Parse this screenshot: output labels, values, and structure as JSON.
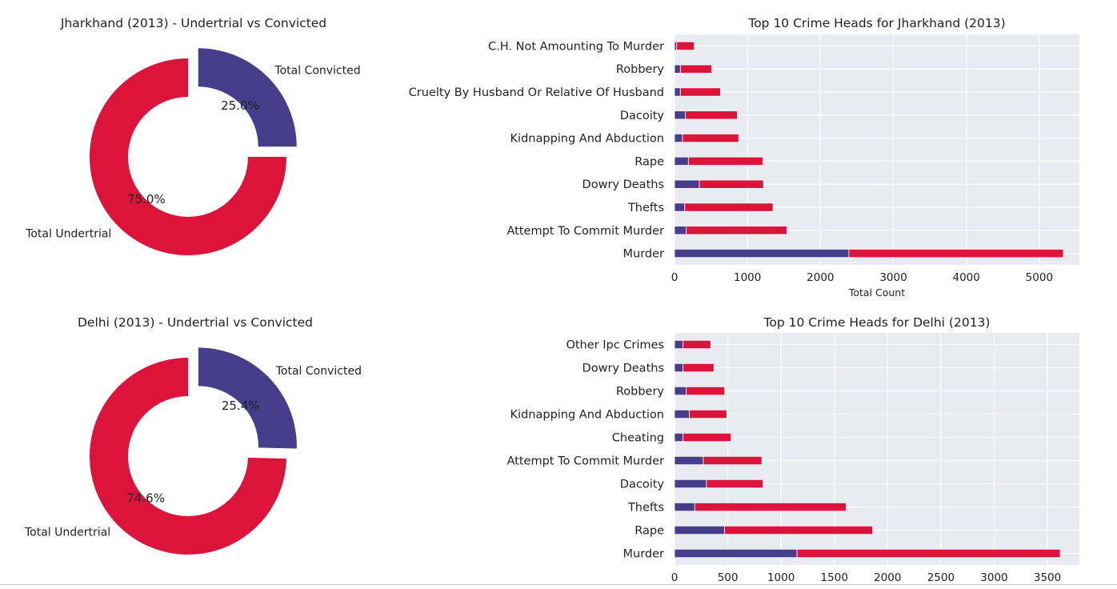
{
  "colors": {
    "undertrial": "#dc143c",
    "convicted": "#483d8b",
    "plot_bg": "#eaeaf2",
    "grid": "#ffffff"
  },
  "chart_data": [
    {
      "type": "pie",
      "title": "Jharkhand (2013) - Undertrial vs Convicted",
      "donut": true,
      "labels": [
        "Total Undertrial",
        "Total Convicted"
      ],
      "values": [
        75.0,
        25.0
      ],
      "autopct": [
        "75.0%",
        "25.0%"
      ],
      "explode_slice": "Total Convicted"
    },
    {
      "type": "bar",
      "orientation": "horizontal",
      "stacked": true,
      "title": "Top 10 Crime Heads for Jharkhand (2013)",
      "xlabel": "Total Count",
      "ylabel": "",
      "categories": [
        "Murder",
        "Attempt To Commit Murder",
        "Thefts",
        "Dowry Deaths",
        "Rape",
        "Kidnapping And Abduction",
        "Dacoity",
        "Cruelty By Husband Or Relative Of Husband",
        "Robbery",
        "C.H. Not Amounting To Murder"
      ],
      "series": [
        {
          "color": "#483d8b",
          "values": [
            2390,
            160,
            140,
            340,
            190,
            110,
            150,
            80,
            80,
            30
          ]
        },
        {
          "color": "#dc143c",
          "values": [
            2940,
            1380,
            1210,
            880,
            1020,
            770,
            710,
            550,
            430,
            240
          ]
        }
      ],
      "xlim": [
        0,
        5550
      ],
      "xticks": [
        0,
        1000,
        2000,
        3000,
        4000,
        5000
      ],
      "grid": true
    },
    {
      "type": "pie",
      "title": "Delhi (2013) - Undertrial vs Convicted",
      "donut": true,
      "labels": [
        "Total Undertrial",
        "Total Convicted"
      ],
      "values": [
        74.6,
        25.4
      ],
      "autopct": [
        "74.6%",
        "25.4%"
      ],
      "explode_slice": "Total Convicted"
    },
    {
      "type": "bar",
      "orientation": "horizontal",
      "stacked": true,
      "title": "Top 10 Crime Heads for Delhi (2013)",
      "xlabel": "",
      "ylabel": "",
      "categories": [
        "Murder",
        "Rape",
        "Thefts",
        "Dacoity",
        "Attempt To Commit Murder",
        "Cheating",
        "Kidnapping And Abduction",
        "Robbery",
        "Dowry Deaths",
        "Other Ipc Crimes"
      ],
      "series": [
        {
          "color": "#483d8b",
          "values": [
            1150,
            470,
            190,
            300,
            270,
            80,
            140,
            110,
            80,
            80
          ]
        },
        {
          "color": "#dc143c",
          "values": [
            2470,
            1390,
            1420,
            530,
            550,
            450,
            350,
            360,
            290,
            260
          ]
        }
      ],
      "xlim": [
        0,
        3800
      ],
      "xticks": [
        0,
        500,
        1000,
        1500,
        2000,
        2500,
        3000,
        3500
      ],
      "grid": true
    }
  ]
}
